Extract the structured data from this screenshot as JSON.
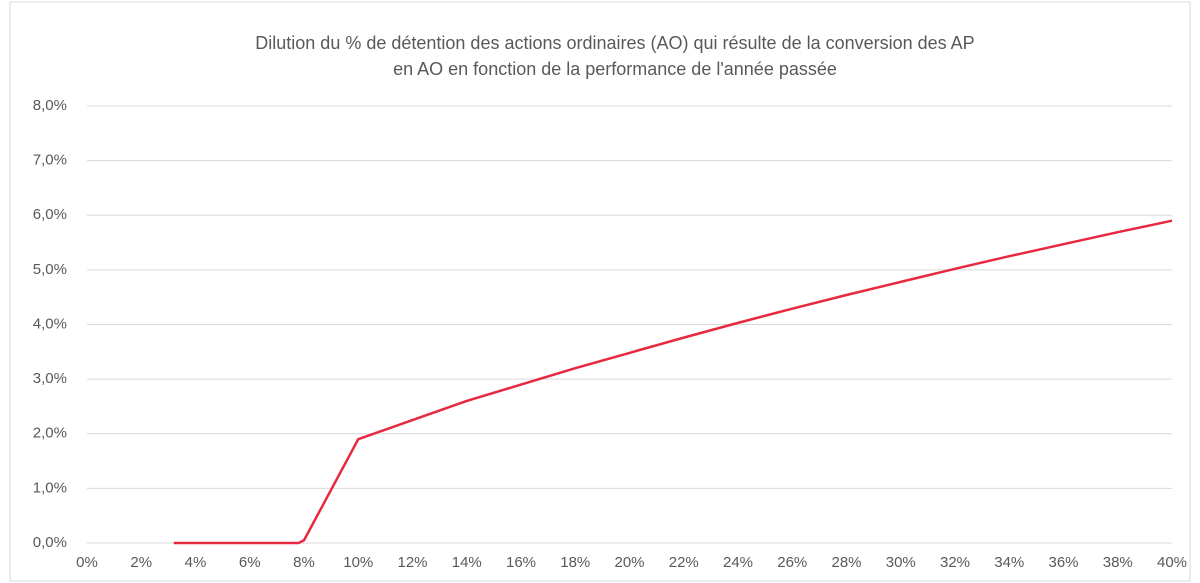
{
  "chart_data": {
    "type": "line",
    "title": [
      "Dilution du % de détention des actions ordinaires (AO) qui résulte de la conversion des AP",
      "en AO en fonction de la performance de l'année passée"
    ],
    "x": [
      3.2,
      7.8,
      8,
      10,
      12,
      14,
      16,
      18,
      20,
      22,
      24,
      26,
      28,
      30,
      32,
      34,
      36,
      38,
      40
    ],
    "series": [
      {
        "color": "#e8283f",
        "values": [
          0,
          0,
          0.05,
          1.9,
          2.25,
          2.6,
          2.9,
          3.2,
          3.48,
          3.76,
          4.03,
          4.29,
          4.54,
          4.78,
          5.02,
          5.25,
          5.47,
          5.69,
          5.9
        ]
      }
    ],
    "xlim": [
      0,
      40
    ],
    "xticks": [
      {
        "value": 0,
        "label": "0%"
      },
      {
        "value": 2,
        "label": "2%"
      },
      {
        "value": 4,
        "label": "4%"
      },
      {
        "value": 6,
        "label": "6%"
      },
      {
        "value": 8,
        "label": "8%"
      },
      {
        "value": 10,
        "label": "10%"
      },
      {
        "value": 12,
        "label": "12%"
      },
      {
        "value": 14,
        "label": "14%"
      },
      {
        "value": 16,
        "label": "16%"
      },
      {
        "value": 18,
        "label": "18%"
      },
      {
        "value": 20,
        "label": "20%"
      },
      {
        "value": 22,
        "label": "22%"
      },
      {
        "value": 24,
        "label": "24%"
      },
      {
        "value": 26,
        "label": "26%"
      },
      {
        "value": 28,
        "label": "28%"
      },
      {
        "value": 30,
        "label": "30%"
      },
      {
        "value": 32,
        "label": "32%"
      },
      {
        "value": 34,
        "label": "34%"
      },
      {
        "value": 36,
        "label": "36%"
      },
      {
        "value": 38,
        "label": "38%"
      },
      {
        "value": 40,
        "label": "40%"
      }
    ],
    "ylim": [
      0,
      8
    ],
    "yticks": [
      {
        "value": 0,
        "label": "0,0%"
      },
      {
        "value": 1,
        "label": "1,0%"
      },
      {
        "value": 2,
        "label": "2,0%"
      },
      {
        "value": 3,
        "label": "3,0%"
      },
      {
        "value": 4,
        "label": "4,0%"
      },
      {
        "value": 5,
        "label": "5,0%"
      },
      {
        "value": 6,
        "label": "6,0%"
      },
      {
        "value": 7,
        "label": "7,0%"
      },
      {
        "value": 8,
        "label": "8,0%"
      }
    ],
    "grid": true
  }
}
